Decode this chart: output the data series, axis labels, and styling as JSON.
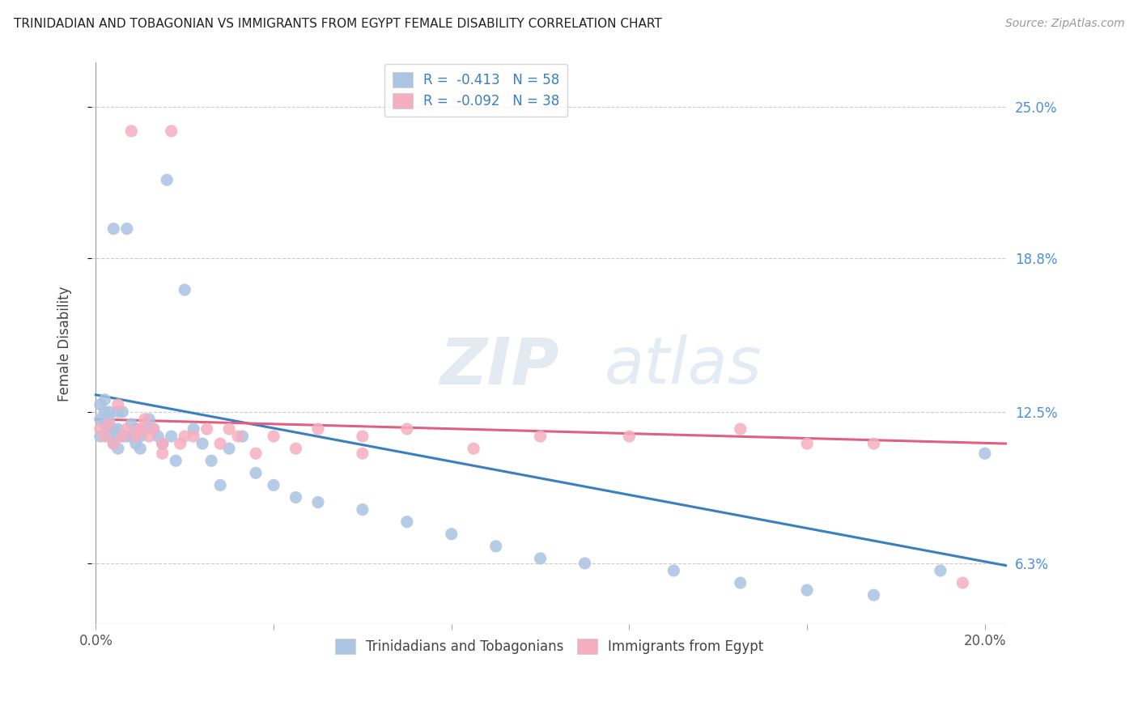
{
  "title": "TRINIDADIAN AND TOBAGONIAN VS IMMIGRANTS FROM EGYPT FEMALE DISABILITY CORRELATION CHART",
  "source": "Source: ZipAtlas.com",
  "ylabel": "Female Disability",
  "y_ticks": [
    0.063,
    0.125,
    0.188,
    0.25
  ],
  "y_tick_labels": [
    "6.3%",
    "12.5%",
    "18.8%",
    "25.0%"
  ],
  "xlim": [
    -0.001,
    0.205
  ],
  "ylim": [
    0.038,
    0.268
  ],
  "series1_color": "#aac4e2",
  "series2_color": "#f5aec0",
  "trendline1_color": "#3a7fc1",
  "trendline2_color": "#e06080",
  "legend1_label": "R =  -0.413   N = 58",
  "legend2_label": "R =  -0.092   N = 38",
  "legend1_group": "Trinidadians and Tobagonians",
  "legend2_group": "Immigrants from Egypt",
  "series1_x": [
    0.001,
    0.001,
    0.001,
    0.002,
    0.002,
    0.002,
    0.003,
    0.003,
    0.003,
    0.003,
    0.004,
    0.004,
    0.004,
    0.005,
    0.005,
    0.005,
    0.005,
    0.006,
    0.006,
    0.007,
    0.007,
    0.008,
    0.008,
    0.009,
    0.009,
    0.01,
    0.01,
    0.011,
    0.012,
    0.013,
    0.014,
    0.015,
    0.016,
    0.017,
    0.018,
    0.02,
    0.022,
    0.024,
    0.026,
    0.028,
    0.03,
    0.033,
    0.036,
    0.04,
    0.045,
    0.05,
    0.06,
    0.07,
    0.08,
    0.09,
    0.1,
    0.11,
    0.13,
    0.145,
    0.16,
    0.175,
    0.19,
    0.2
  ],
  "series1_y": [
    0.128,
    0.122,
    0.115,
    0.13,
    0.12,
    0.125,
    0.118,
    0.122,
    0.115,
    0.125,
    0.2,
    0.118,
    0.112,
    0.118,
    0.125,
    0.115,
    0.11,
    0.125,
    0.115,
    0.2,
    0.115,
    0.12,
    0.115,
    0.112,
    0.118,
    0.115,
    0.11,
    0.118,
    0.122,
    0.118,
    0.115,
    0.112,
    0.22,
    0.115,
    0.105,
    0.175,
    0.118,
    0.112,
    0.105,
    0.095,
    0.11,
    0.115,
    0.1,
    0.095,
    0.09,
    0.088,
    0.085,
    0.08,
    0.075,
    0.07,
    0.065,
    0.063,
    0.06,
    0.055,
    0.052,
    0.05,
    0.06,
    0.108
  ],
  "series2_x": [
    0.001,
    0.002,
    0.003,
    0.004,
    0.005,
    0.006,
    0.007,
    0.008,
    0.009,
    0.01,
    0.011,
    0.012,
    0.013,
    0.015,
    0.017,
    0.019,
    0.022,
    0.025,
    0.028,
    0.032,
    0.036,
    0.04,
    0.045,
    0.05,
    0.06,
    0.07,
    0.085,
    0.1,
    0.12,
    0.145,
    0.16,
    0.175,
    0.195,
    0.01,
    0.015,
    0.02,
    0.03,
    0.06
  ],
  "series2_y": [
    0.118,
    0.115,
    0.12,
    0.112,
    0.128,
    0.115,
    0.118,
    0.24,
    0.115,
    0.118,
    0.122,
    0.115,
    0.118,
    0.112,
    0.24,
    0.112,
    0.115,
    0.118,
    0.112,
    0.115,
    0.108,
    0.115,
    0.11,
    0.118,
    0.115,
    0.118,
    0.11,
    0.115,
    0.115,
    0.118,
    0.112,
    0.112,
    0.055,
    0.118,
    0.108,
    0.115,
    0.118,
    0.108
  ],
  "trendline1_x0": 0.0,
  "trendline1_y0": 0.132,
  "trendline1_x1": 0.205,
  "trendline1_y1": 0.062,
  "trendline2_x0": 0.0,
  "trendline2_y0": 0.122,
  "trendline2_x1": 0.205,
  "trendline2_y1": 0.112
}
